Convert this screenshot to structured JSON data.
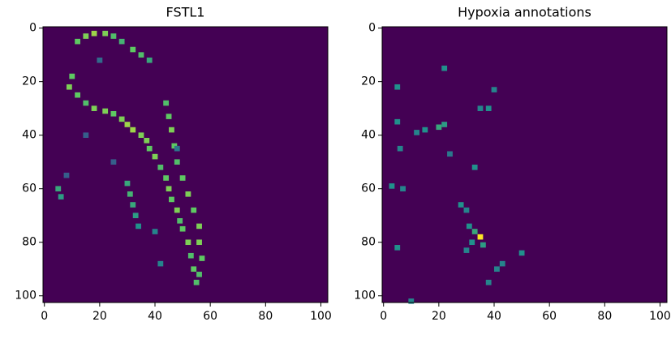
{
  "chart_data": [
    {
      "type": "heatmap",
      "title": "FSTL1",
      "colormap": "viridis",
      "x": [
        12,
        15,
        18,
        22,
        25,
        28,
        32,
        35,
        38,
        10,
        9,
        12,
        15,
        18,
        22,
        25,
        28,
        30,
        32,
        35,
        37,
        38,
        40,
        42,
        44,
        45,
        46,
        48,
        49,
        50,
        52,
        53,
        54,
        55,
        44,
        45,
        46,
        47,
        48,
        50,
        52,
        54,
        56,
        56,
        57,
        56,
        5,
        6,
        30,
        31,
        32,
        33,
        34,
        40,
        20,
        15,
        25,
        8,
        48,
        42
      ],
      "y": [
        5,
        3,
        2,
        2,
        3,
        5,
        8,
        10,
        12,
        18,
        22,
        25,
        28,
        30,
        31,
        32,
        34,
        36,
        38,
        40,
        42,
        45,
        48,
        52,
        56,
        60,
        64,
        68,
        72,
        75,
        80,
        85,
        90,
        95,
        28,
        33,
        38,
        44,
        50,
        56,
        62,
        68,
        74,
        80,
        86,
        92,
        60,
        63,
        58,
        62,
        66,
        70,
        74,
        76,
        12,
        40,
        50,
        55,
        45,
        88
      ],
      "values": [
        0.75,
        0.8,
        0.85,
        0.8,
        0.7,
        0.65,
        0.75,
        0.7,
        0.6,
        0.75,
        0.8,
        0.75,
        0.7,
        0.8,
        0.8,
        0.75,
        0.8,
        0.85,
        0.85,
        0.8,
        0.8,
        0.75,
        0.8,
        0.7,
        0.75,
        0.8,
        0.75,
        0.8,
        0.7,
        0.75,
        0.8,
        0.7,
        0.75,
        0.7,
        0.7,
        0.75,
        0.8,
        0.75,
        0.7,
        0.75,
        0.8,
        0.75,
        0.8,
        0.8,
        0.75,
        0.7,
        0.6,
        0.55,
        0.6,
        0.65,
        0.6,
        0.55,
        0.5,
        0.45,
        0.35,
        0.3,
        0.3,
        0.3,
        0.4,
        0.45
      ],
      "xlim": [
        -0.5,
        102.5
      ],
      "ylim": [
        102.5,
        -0.5
      ],
      "xticks": [
        0,
        20,
        40,
        60,
        80,
        100
      ],
      "yticks": [
        0,
        20,
        40,
        60,
        80,
        100
      ]
    },
    {
      "type": "heatmap",
      "title": "Hypoxia annotations",
      "colormap": "viridis",
      "x": [
        22,
        5,
        38,
        40,
        35,
        5,
        20,
        22,
        15,
        12,
        6,
        3,
        7,
        33,
        28,
        30,
        33,
        35,
        36,
        32,
        30,
        41,
        38,
        50,
        5,
        10,
        24,
        43,
        31
      ],
      "y": [
        15,
        22,
        30,
        23,
        30,
        35,
        37,
        36,
        38,
        39,
        45,
        59,
        60,
        52,
        66,
        68,
        76,
        78,
        81,
        80,
        83,
        90,
        95,
        84,
        82,
        102,
        47,
        88,
        74
      ],
      "values": [
        0.5,
        0.5,
        0.5,
        0.45,
        0.45,
        0.5,
        0.6,
        0.55,
        0.5,
        0.45,
        0.45,
        0.5,
        0.45,
        0.5,
        0.5,
        0.45,
        0.6,
        1.0,
        0.55,
        0.5,
        0.45,
        0.45,
        0.45,
        0.5,
        0.5,
        0.45,
        0.4,
        0.45,
        0.5
      ],
      "xlim": [
        -0.5,
        102.5
      ],
      "ylim": [
        102.5,
        -0.5
      ],
      "xticks": [
        0,
        20,
        40,
        60,
        80,
        100
      ],
      "yticks": [
        0,
        20,
        40,
        60,
        80,
        100
      ]
    }
  ]
}
